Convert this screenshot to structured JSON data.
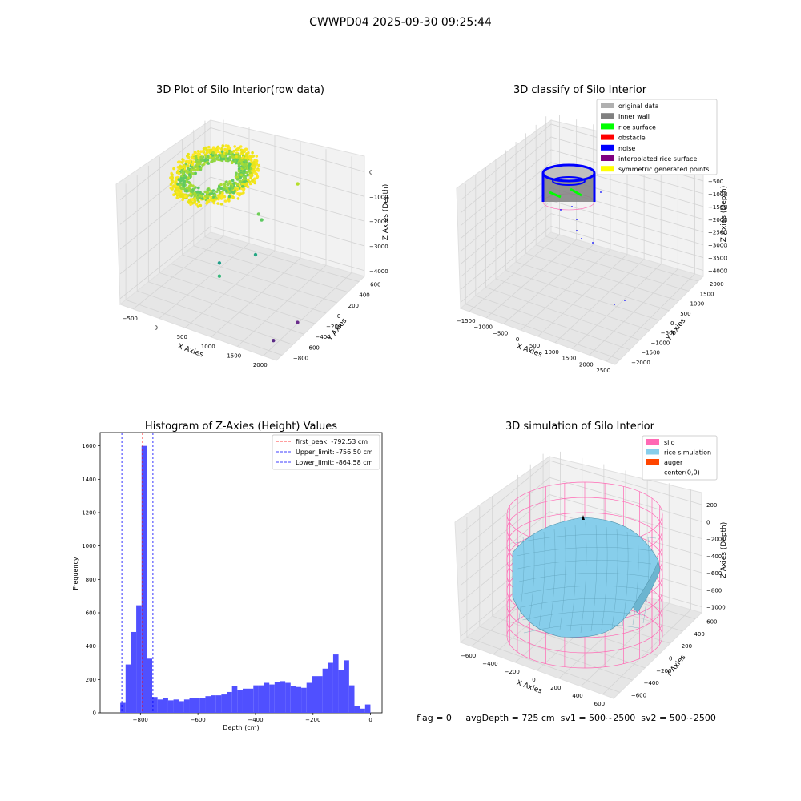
{
  "suptitle": "CWWPD04 2025-09-30 09:25:44",
  "footer": "flag = 0     avgDepth = 725 cm  sv1 = 500~2500  sv2 = 500~2500",
  "colors": {
    "hist_bar": "#5050ff",
    "peak_line": "#ff0000",
    "limit_line": "#0000ff",
    "silo_wire": "#ff69b4",
    "rice_surface": "#87ceeb",
    "pane": "#f2f2f2",
    "pane_grid": "#d9d9d9"
  },
  "chart_data": [
    {
      "type": "scatter",
      "subtype": "3d",
      "title": "3D Plot of Silo Interior(row data)",
      "xlabel": "X Axies",
      "ylabel": "Y Axies",
      "zlabel": "Z Axies (Depth)",
      "xticks": [
        "−500",
        "0",
        "500",
        "1000",
        "1500",
        "2000"
      ],
      "yticks": [
        "−800",
        "−600",
        "−400",
        "−200",
        "0",
        "200",
        "400",
        "600"
      ],
      "zticks": [
        "0",
        "−1000",
        "−2000",
        "−3000",
        "−4000"
      ],
      "xlim": [
        -600,
        2000
      ],
      "ylim": [
        -850,
        650
      ],
      "zlim": [
        -4600,
        200
      ],
      "colormap": "viridis",
      "outliers": [
        {
          "x": 1200,
          "y": 300,
          "z": -300
        },
        {
          "x": 700,
          "y": 150,
          "z": -1700
        },
        {
          "x": 800,
          "y": 100,
          "z": -1750
        },
        {
          "x": 900,
          "y": -100,
          "z": -2700
        },
        {
          "x": 500,
          "y": -300,
          "z": -3000
        },
        {
          "x": 550,
          "y": -350,
          "z": -3400
        },
        {
          "x": 1800,
          "y": -300,
          "z": -4300
        },
        {
          "x": 1750,
          "y": -650,
          "z": -4400
        }
      ]
    },
    {
      "type": "scatter",
      "subtype": "3d",
      "title": "3D classify of Silo Interior",
      "xlabel": "X Axies",
      "ylabel": "Y Axies",
      "zlabel": "Z Axies (Depth)",
      "xticks": [
        "−1500",
        "−1000",
        "−500",
        "0",
        "500",
        "1000",
        "1500",
        "2000",
        "2500"
      ],
      "yticks": [
        "−2000",
        "−1500",
        "−1000",
        "−500",
        "0",
        "500",
        "1000",
        "1500",
        "2000"
      ],
      "zticks": [
        "0",
        "−500",
        "−1000",
        "−1500",
        "−2000",
        "−2500",
        "−3000",
        "−3500",
        "−4000"
      ],
      "legend_position": "top-right",
      "legend": [
        {
          "label": "original data",
          "color": "#b0b0b0"
        },
        {
          "label": "inner wall",
          "color": "#808080"
        },
        {
          "label": "rice surface",
          "color": "#00ff00"
        },
        {
          "label": "obstacle",
          "color": "#ff0000"
        },
        {
          "label": "noise",
          "color": "#0000ff"
        },
        {
          "label": "interpolated rice surface",
          "color": "#800080"
        },
        {
          "label": "symmetric generated points",
          "color": "#ffff00"
        }
      ]
    },
    {
      "type": "bar",
      "subtype": "histogram",
      "title": "Histogram of Z-Axies (Height) Values",
      "xlabel": "Depth (cm)",
      "ylabel": "Frequency",
      "xlim": [
        -940,
        40
      ],
      "ylim": [
        0,
        1680
      ],
      "xticks": [
        -800,
        -600,
        -400,
        -200,
        0
      ],
      "yticks": [
        0,
        200,
        400,
        600,
        800,
        1000,
        1200,
        1400,
        1600
      ],
      "bin_width": 18.5,
      "bin_start": -870,
      "values": [
        60,
        290,
        485,
        645,
        1600,
        325,
        95,
        80,
        90,
        75,
        80,
        70,
        80,
        90,
        90,
        90,
        100,
        105,
        105,
        110,
        125,
        160,
        135,
        145,
        145,
        165,
        165,
        180,
        170,
        185,
        190,
        180,
        160,
        155,
        150,
        180,
        220,
        220,
        265,
        300,
        350,
        255,
        315,
        165,
        40,
        25,
        50
      ],
      "vlines": [
        {
          "label": "first_peak: -792.53 cm",
          "x": -792.53,
          "color": "#ff0000"
        },
        {
          "label": "Upper_limit: -756.50 cm",
          "x": -756.5,
          "color": "#0000ff"
        },
        {
          "label": "Lower_limit: -864.58 cm",
          "x": -864.58,
          "color": "#0000ff"
        }
      ],
      "legend_position": "top-right"
    },
    {
      "type": "area",
      "subtype": "3d-surface",
      "title": "3D simulation of Silo Interior",
      "xlabel": "X Axies",
      "ylabel": "Y Axies",
      "zlabel": "Z Axies (Depth)",
      "xticks": [
        "−600",
        "−400",
        "−200",
        "0",
        "200",
        "400",
        "600"
      ],
      "yticks": [
        "−600",
        "−400",
        "−200",
        "0",
        "200",
        "400",
        "600"
      ],
      "zticks": [
        "200",
        "0",
        "−200",
        "−400",
        "−600",
        "−800",
        "−1000"
      ],
      "legend_position": "top-right",
      "legend": [
        {
          "label": "silo",
          "color": "#ff69b4"
        },
        {
          "label": "rice simulation",
          "color": "#87ceeb"
        },
        {
          "label": "auger",
          "color": "#ff4500"
        },
        {
          "label": "center(0,0)",
          "color": ""
        }
      ]
    }
  ]
}
